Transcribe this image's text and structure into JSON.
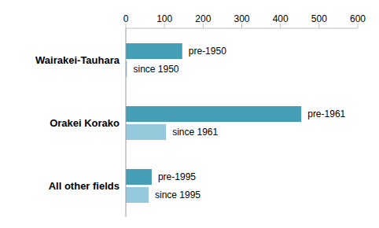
{
  "chart_data": {
    "type": "bar",
    "orientation": "horizontal",
    "categories": [
      "Wairakei-Tauhara",
      "Orakei Korako",
      "All other fields"
    ],
    "series": [
      {
        "color": "#469db6",
        "values": [
          146,
          454,
          67
        ],
        "labels": [
          "pre-1950",
          "pre-1961",
          "pre-1995"
        ]
      },
      {
        "color": "#95c8da",
        "values": [
          3,
          104,
          59
        ],
        "labels": [
          "since 1950",
          "since 1961",
          "since 1995"
        ]
      }
    ],
    "xlim": [
      0,
      600
    ],
    "xticks": [
      0,
      100,
      200,
      300,
      400,
      500,
      600
    ],
    "grid": false,
    "tick_labels": true,
    "data_labels": false
  }
}
